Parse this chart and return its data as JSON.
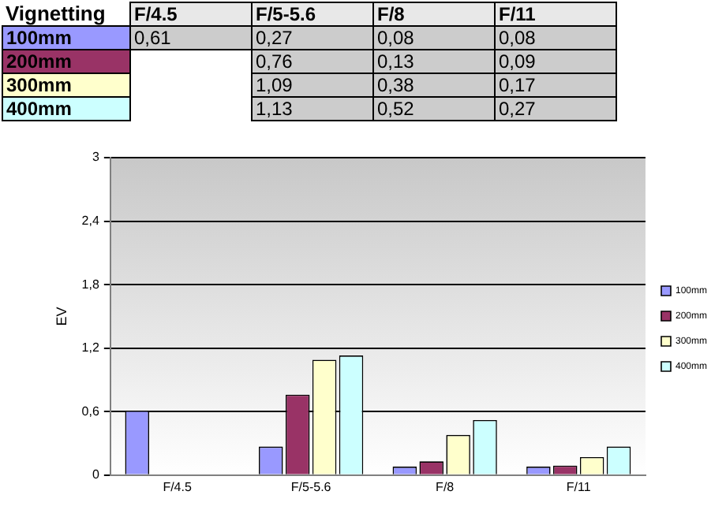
{
  "chart_data": {
    "type": "bar",
    "title": "Vignetting",
    "ylabel": "EV",
    "categories": [
      "F/4.5",
      "F/5-5.6",
      "F/8",
      "F/11"
    ],
    "series": [
      {
        "name": "100mm",
        "color": "#9999ff",
        "values": [
          0.61,
          0.27,
          0.08,
          0.08
        ],
        "value_labels": [
          "0,61",
          "0,27",
          "0,08",
          "0,08"
        ]
      },
      {
        "name": "200mm",
        "color": "#993366",
        "values": [
          null,
          0.76,
          0.13,
          0.09
        ],
        "value_labels": [
          null,
          "0,76",
          "0,13",
          "0,09"
        ]
      },
      {
        "name": "300mm",
        "color": "#ffffcc",
        "values": [
          null,
          1.09,
          0.38,
          0.17
        ],
        "value_labels": [
          null,
          "1,09",
          "0,38",
          "0,17"
        ]
      },
      {
        "name": "400mm",
        "color": "#ccffff",
        "values": [
          null,
          1.13,
          0.52,
          0.27
        ],
        "value_labels": [
          null,
          "1,13",
          "0,52",
          "0,27"
        ]
      }
    ],
    "ylim": [
      0,
      3
    ],
    "yticks": [
      0,
      {
        "value": 0.6,
        "label": "0,6"
      },
      {
        "value": 1.2,
        "label": "1,2"
      },
      {
        "value": 1.8,
        "label": "1,8"
      },
      {
        "value": 2.4,
        "label": "2,4"
      },
      3
    ],
    "grid": "y",
    "legend": "right"
  }
}
